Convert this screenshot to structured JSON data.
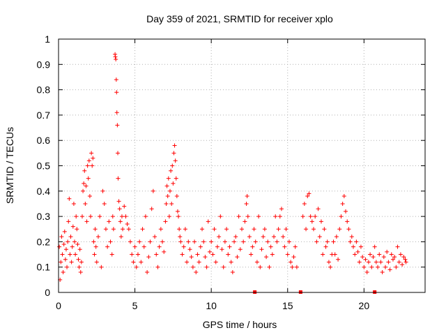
{
  "chart_data": {
    "type": "scatter",
    "title": "Day 359 of 2021, SRMTID for receiver xplo",
    "xlabel": "GPS time / hours",
    "ylabel": "SRMTID / TECUs",
    "xlim": [
      0,
      24
    ],
    "ylim": [
      0,
      1
    ],
    "x_ticks": [
      0,
      5,
      10,
      15,
      20
    ],
    "x_tick_labels": [
      "0",
      "5",
      "10",
      "15",
      "20"
    ],
    "y_ticks": [
      0,
      0.1,
      0.2,
      0.3,
      0.4,
      0.5,
      0.6,
      0.7,
      0.8,
      0.9,
      1
    ],
    "y_tick_labels": [
      "0",
      "0.1",
      "0.2",
      "0.3",
      "0.4",
      "0.5",
      "0.6",
      "0.7",
      "0.8",
      "0.9",
      "1"
    ],
    "grid": true,
    "marker": "+",
    "series_color": "#ff0000",
    "series": [
      {
        "name": "SRMTID",
        "points": [
          [
            0.05,
            0.18
          ],
          [
            0.1,
            0.05
          ],
          [
            0.15,
            0.12
          ],
          [
            0.2,
            0.22
          ],
          [
            0.25,
            0.15
          ],
          [
            0.3,
            0.08
          ],
          [
            0.35,
            0.19
          ],
          [
            0.4,
            0.24
          ],
          [
            0.45,
            0.13
          ],
          [
            0.5,
            0.17
          ],
          [
            0.55,
            0.1
          ],
          [
            0.6,
            0.2
          ],
          [
            0.65,
            0.28
          ],
          [
            0.7,
            0.37
          ],
          [
            0.75,
            0.15
          ],
          [
            0.8,
            0.22
          ],
          [
            0.85,
            0.12
          ],
          [
            0.9,
            0.18
          ],
          [
            0.95,
            0.26
          ],
          [
            1.0,
            0.35
          ],
          [
            1.05,
            0.2
          ],
          [
            1.1,
            0.15
          ],
          [
            1.15,
            0.3
          ],
          [
            1.2,
            0.25
          ],
          [
            1.25,
            0.19
          ],
          [
            1.3,
            0.13
          ],
          [
            1.35,
            0.1
          ],
          [
            1.4,
            0.17
          ],
          [
            1.45,
            0.08
          ],
          [
            1.5,
            0.12
          ],
          [
            1.55,
            0.3
          ],
          [
            1.6,
            0.4
          ],
          [
            1.65,
            0.43
          ],
          [
            1.7,
            0.48
          ],
          [
            1.75,
            0.35
          ],
          [
            1.8,
            0.42
          ],
          [
            1.85,
            0.28
          ],
          [
            1.9,
            0.5
          ],
          [
            1.95,
            0.45
          ],
          [
            2.0,
            0.52
          ],
          [
            2.05,
            0.38
          ],
          [
            2.1,
            0.3
          ],
          [
            2.15,
            0.55
          ],
          [
            2.2,
            0.5
          ],
          [
            2.25,
            0.53
          ],
          [
            2.3,
            0.2
          ],
          [
            2.35,
            0.15
          ],
          [
            2.4,
            0.25
          ],
          [
            2.45,
            0.18
          ],
          [
            2.5,
            0.12
          ],
          [
            2.6,
            0.22
          ],
          [
            2.7,
            0.3
          ],
          [
            2.8,
            0.1
          ],
          [
            2.9,
            0.4
          ],
          [
            3.0,
            0.35
          ],
          [
            3.1,
            0.25
          ],
          [
            3.2,
            0.18
          ],
          [
            3.3,
            0.28
          ],
          [
            3.4,
            0.2
          ],
          [
            3.5,
            0.15
          ],
          [
            3.55,
            0.3
          ],
          [
            3.6,
            0.25
          ],
          [
            3.7,
            0.94
          ],
          [
            3.72,
            0.93
          ],
          [
            3.75,
            0.92
          ],
          [
            3.78,
            0.84
          ],
          [
            3.8,
            0.79
          ],
          [
            3.82,
            0.71
          ],
          [
            3.85,
            0.66
          ],
          [
            3.88,
            0.55
          ],
          [
            3.9,
            0.45
          ],
          [
            3.95,
            0.36
          ],
          [
            4.0,
            0.33
          ],
          [
            4.05,
            0.28
          ],
          [
            4.1,
            0.22
          ],
          [
            4.15,
            0.3
          ],
          [
            4.2,
            0.25
          ],
          [
            4.3,
            0.34
          ],
          [
            4.4,
            0.3
          ],
          [
            4.5,
            0.27
          ],
          [
            4.6,
            0.25
          ],
          [
            4.7,
            0.2
          ],
          [
            4.8,
            0.15
          ],
          [
            4.9,
            0.12
          ],
          [
            5.0,
            0.18
          ],
          [
            5.1,
            0.1
          ],
          [
            5.2,
            0.15
          ],
          [
            5.3,
            0.2
          ],
          [
            5.4,
            0.12
          ],
          [
            5.5,
            0.25
          ],
          [
            5.6,
            0.18
          ],
          [
            5.7,
            0.3
          ],
          [
            5.8,
            0.08
          ],
          [
            5.9,
            0.14
          ],
          [
            6.0,
            0.2
          ],
          [
            6.1,
            0.33
          ],
          [
            6.2,
            0.4
          ],
          [
            6.3,
            0.22
          ],
          [
            6.4,
            0.15
          ],
          [
            6.5,
            0.1
          ],
          [
            6.6,
            0.18
          ],
          [
            6.7,
            0.25
          ],
          [
            6.8,
            0.2
          ],
          [
            6.9,
            0.16
          ],
          [
            7.0,
            0.28
          ],
          [
            7.05,
            0.35
          ],
          [
            7.1,
            0.42
          ],
          [
            7.15,
            0.38
          ],
          [
            7.2,
            0.45
          ],
          [
            7.25,
            0.3
          ],
          [
            7.3,
            0.4
          ],
          [
            7.35,
            0.48
          ],
          [
            7.4,
            0.35
          ],
          [
            7.45,
            0.5
          ],
          [
            7.5,
            0.43
          ],
          [
            7.55,
            0.55
          ],
          [
            7.6,
            0.58
          ],
          [
            7.65,
            0.52
          ],
          [
            7.7,
            0.45
          ],
          [
            7.75,
            0.38
          ],
          [
            7.8,
            0.32
          ],
          [
            7.85,
            0.3
          ],
          [
            7.9,
            0.25
          ],
          [
            7.95,
            0.22
          ],
          [
            8.0,
            0.2
          ],
          [
            8.1,
            0.15
          ],
          [
            8.2,
            0.18
          ],
          [
            8.3,
            0.25
          ],
          [
            8.4,
            0.12
          ],
          [
            8.5,
            0.2
          ],
          [
            8.6,
            0.17
          ],
          [
            8.7,
            0.14
          ],
          [
            8.8,
            0.1
          ],
          [
            8.9,
            0.2
          ],
          [
            9.0,
            0.08
          ],
          [
            9.1,
            0.15
          ],
          [
            9.2,
            0.12
          ],
          [
            9.3,
            0.18
          ],
          [
            9.4,
            0.25
          ],
          [
            9.5,
            0.2
          ],
          [
            9.6,
            0.14
          ],
          [
            9.7,
            0.1
          ],
          [
            9.8,
            0.28
          ],
          [
            9.9,
            0.16
          ],
          [
            10.0,
            0.2
          ],
          [
            10.1,
            0.15
          ],
          [
            10.2,
            0.25
          ],
          [
            10.3,
            0.12
          ],
          [
            10.4,
            0.18
          ],
          [
            10.5,
            0.22
          ],
          [
            10.6,
            0.3
          ],
          [
            10.7,
            0.17
          ],
          [
            10.8,
            0.1
          ],
          [
            10.9,
            0.2
          ],
          [
            11.0,
            0.25
          ],
          [
            11.1,
            0.15
          ],
          [
            11.2,
            0.18
          ],
          [
            11.3,
            0.12
          ],
          [
            11.4,
            0.08
          ],
          [
            11.5,
            0.2
          ],
          [
            11.6,
            0.22
          ],
          [
            11.7,
            0.14
          ],
          [
            11.8,
            0.3
          ],
          [
            11.9,
            0.17
          ],
          [
            12.0,
            0.25
          ],
          [
            12.1,
            0.2
          ],
          [
            12.2,
            0.28
          ],
          [
            12.3,
            0.35
          ],
          [
            12.35,
            0.38
          ],
          [
            12.4,
            0.3
          ],
          [
            12.5,
            0.22
          ],
          [
            12.6,
            0.15
          ],
          [
            12.7,
            0.18
          ],
          [
            12.8,
            0.25
          ],
          [
            12.9,
            0.2
          ],
          [
            13.0,
            0.12
          ],
          [
            13.1,
            0.3
          ],
          [
            13.2,
            0.1
          ],
          [
            13.3,
            0.17
          ],
          [
            13.4,
            0.22
          ],
          [
            13.5,
            0.25
          ],
          [
            13.6,
            0.14
          ],
          [
            13.7,
            0.2
          ],
          [
            13.8,
            0.1
          ],
          [
            13.9,
            0.18
          ],
          [
            14.0,
            0.15
          ],
          [
            14.1,
            0.22
          ],
          [
            14.2,
            0.3
          ],
          [
            14.3,
            0.2
          ],
          [
            14.4,
            0.25
          ],
          [
            14.5,
            0.3
          ],
          [
            14.6,
            0.33
          ],
          [
            14.7,
            0.22
          ],
          [
            14.8,
            0.18
          ],
          [
            14.9,
            0.25
          ],
          [
            15.0,
            0.15
          ],
          [
            15.1,
            0.2
          ],
          [
            15.2,
            0.12
          ],
          [
            15.3,
            0.1
          ],
          [
            15.4,
            0.14
          ],
          [
            15.5,
            0.18
          ],
          [
            15.6,
            0.1
          ],
          [
            16.0,
            0.3
          ],
          [
            16.1,
            0.35
          ],
          [
            16.2,
            0.25
          ],
          [
            16.3,
            0.38
          ],
          [
            16.4,
            0.39
          ],
          [
            16.5,
            0.3
          ],
          [
            16.6,
            0.28
          ],
          [
            16.7,
            0.25
          ],
          [
            16.8,
            0.3
          ],
          [
            16.9,
            0.2
          ],
          [
            17.0,
            0.33
          ],
          [
            17.1,
            0.22
          ],
          [
            17.2,
            0.28
          ],
          [
            17.3,
            0.15
          ],
          [
            17.4,
            0.25
          ],
          [
            17.5,
            0.18
          ],
          [
            17.6,
            0.2
          ],
          [
            17.7,
            0.12
          ],
          [
            17.8,
            0.1
          ],
          [
            17.9,
            0.15
          ],
          [
            18.0,
            0.2
          ],
          [
            18.1,
            0.15
          ],
          [
            18.2,
            0.22
          ],
          [
            18.3,
            0.13
          ],
          [
            18.4,
            0.25
          ],
          [
            18.5,
            0.3
          ],
          [
            18.6,
            0.35
          ],
          [
            18.7,
            0.38
          ],
          [
            18.8,
            0.32
          ],
          [
            18.9,
            0.28
          ],
          [
            19.0,
            0.25
          ],
          [
            19.1,
            0.2
          ],
          [
            19.2,
            0.22
          ],
          [
            19.3,
            0.18
          ],
          [
            19.4,
            0.15
          ],
          [
            19.5,
            0.2
          ],
          [
            19.6,
            0.16
          ],
          [
            19.7,
            0.12
          ],
          [
            19.8,
            0.18
          ],
          [
            19.9,
            0.14
          ],
          [
            20.0,
            0.1
          ],
          [
            20.1,
            0.13
          ],
          [
            20.2,
            0.08
          ],
          [
            20.3,
            0.12
          ],
          [
            20.4,
            0.15
          ],
          [
            20.5,
            0.1
          ],
          [
            20.6,
            0.14
          ],
          [
            20.7,
            0.18
          ],
          [
            20.8,
            0.12
          ],
          [
            20.9,
            0.1
          ],
          [
            21.0,
            0.15
          ],
          [
            21.1,
            0.12
          ],
          [
            21.2,
            0.08
          ],
          [
            21.3,
            0.14
          ],
          [
            21.4,
            0.1
          ],
          [
            21.5,
            0.16
          ],
          [
            21.6,
            0.12
          ],
          [
            21.7,
            0.09
          ],
          [
            21.8,
            0.15
          ],
          [
            21.9,
            0.13
          ],
          [
            22.0,
            0.14
          ],
          [
            22.1,
            0.1
          ],
          [
            22.2,
            0.18
          ],
          [
            22.3,
            0.12
          ],
          [
            22.4,
            0.15
          ],
          [
            22.5,
            0.11
          ],
          [
            22.6,
            0.14
          ],
          [
            22.7,
            0.13
          ],
          [
            22.75,
            0.12
          ]
        ]
      }
    ],
    "baseline_markers_x": [
      12.85,
      15.85,
      20.7
    ]
  }
}
